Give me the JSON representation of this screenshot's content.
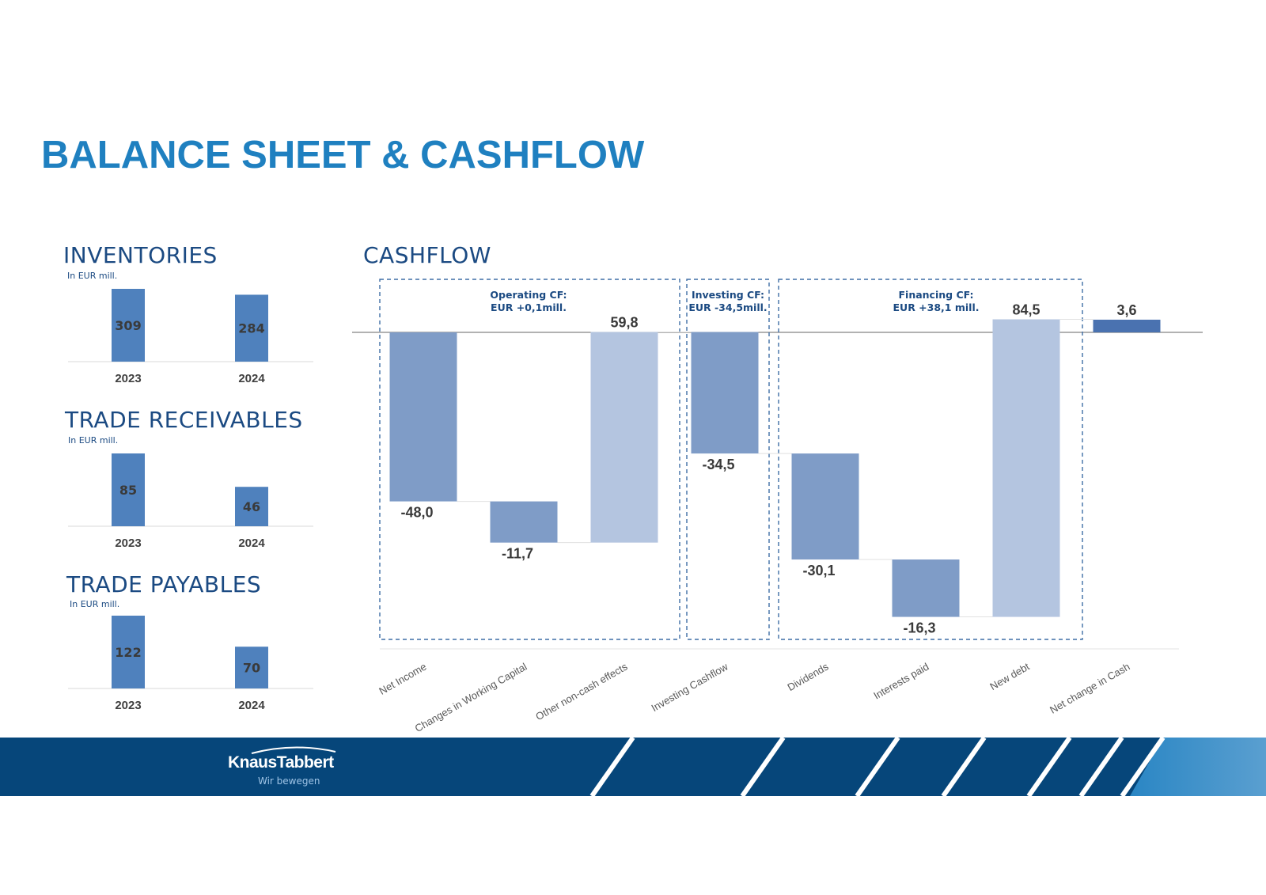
{
  "title": "BALANCE SHEET & CASHFLOW",
  "colors": {
    "title": "#1f80c0",
    "section": "#1b4a82",
    "small_bar": "#4f81bd",
    "cf_dark": "#7f9cc7",
    "cf_light": "#b4c5e0",
    "cf_net": "#4a72b0",
    "footer": "#06467a"
  },
  "small_charts": [
    {
      "title": "INVENTORIES",
      "unit": "In EUR mill.",
      "chart_data": {
        "type": "bar",
        "categories": [
          "2023",
          "2024"
        ],
        "values": [
          309,
          284
        ],
        "ylim": [
          0,
          309
        ]
      }
    },
    {
      "title": "TRADE RECEIVABLES",
      "unit": "In EUR mill.",
      "chart_data": {
        "type": "bar",
        "categories": [
          "2023",
          "2024"
        ],
        "values": [
          85,
          46
        ],
        "ylim": [
          0,
          85
        ]
      }
    },
    {
      "title": "TRADE PAYABLES",
      "unit": "In EUR mill.",
      "chart_data": {
        "type": "bar",
        "categories": [
          "2023",
          "2024"
        ],
        "values": [
          122,
          70
        ],
        "ylim": [
          0,
          122
        ]
      }
    }
  ],
  "cashflow": {
    "title": "CASHFLOW",
    "groups": [
      {
        "line1": "Operating CF:",
        "line2": "EUR +0,1mill."
      },
      {
        "line1": "Investing CF:",
        "line2": "EUR -34,5mill."
      },
      {
        "line1": "Financing CF:",
        "line2": "EUR +38,1 mill."
      }
    ],
    "chart_data": {
      "type": "waterfall",
      "categories": [
        "Net Income",
        "Changes in Working Capital",
        "Other non-cash effects",
        "Investing Cashflow",
        "Dividends",
        "Interests paid",
        "New debt",
        "Net change in Cash"
      ],
      "labels": [
        "-48,0",
        "-11,7",
        "59,8",
        "-34,5",
        "-30,1",
        "-16,3",
        "84,5",
        "3,6"
      ],
      "values": [
        -48.0,
        -11.7,
        59.8,
        -34.5,
        -30.1,
        -16.3,
        84.5,
        3.6
      ],
      "styles": [
        "dark",
        "dark",
        "light",
        "dark",
        "dark",
        "dark",
        "light",
        "net"
      ]
    }
  },
  "footer": {
    "logo": "KnausTabbert",
    "slogan": "Wir bewegen"
  }
}
